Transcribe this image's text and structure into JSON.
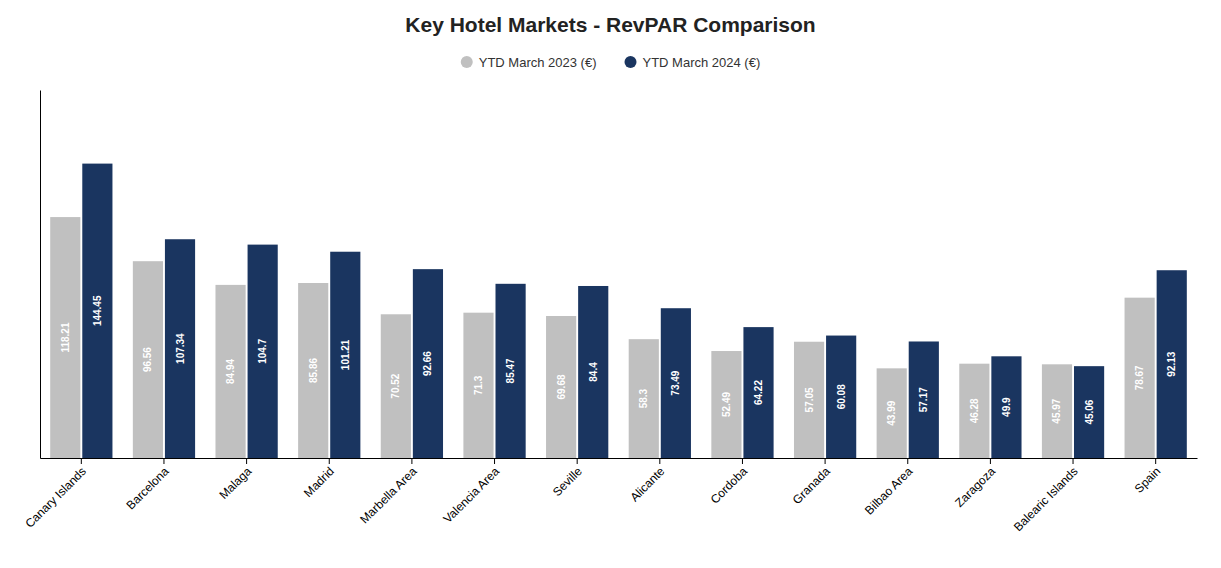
{
  "chart_data": {
    "type": "bar",
    "title": "Key Hotel Markets - RevPAR Comparison",
    "categories": [
      "Canary Islands",
      "Barcelona",
      "Malaga",
      "Madrid",
      "Marbella Area",
      "Valencia Area",
      "Seville",
      "Alicante",
      "Cordoba",
      "Granada",
      "Bilbao Area",
      "Zaragoza",
      "Balearic Islands",
      "Spain"
    ],
    "series": [
      {
        "name": "YTD March 2023 (€)",
        "color": "#c0c0c0",
        "values": [
          118.21,
          96.56,
          84.94,
          85.86,
          70.52,
          71.3,
          69.68,
          58.3,
          52.49,
          57.05,
          43.99,
          46.28,
          45.97,
          78.67
        ]
      },
      {
        "name": "YTD March 2024 (€)",
        "color": "#1a3560",
        "values": [
          144.45,
          107.34,
          104.7,
          101.21,
          92.66,
          85.47,
          84.4,
          73.49,
          64.22,
          60.08,
          57.17,
          49.9,
          45.06,
          92.13
        ]
      }
    ],
    "ylim": [
      0,
      180.5625
    ],
    "yticks": [],
    "grid": false,
    "legend": "top",
    "data_labels": true,
    "tick_labels": "x"
  }
}
